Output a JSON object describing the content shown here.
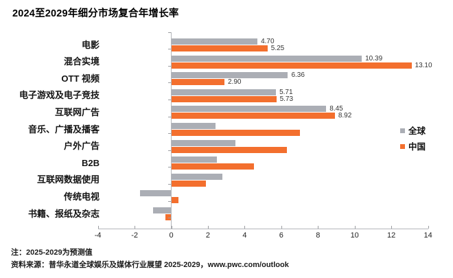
{
  "title": "2024至2029年细分市场复合年增长率",
  "legend": [
    {
      "label": "全球",
      "color": "#abaeb5"
    },
    {
      "label": "中国",
      "color": "#f36f2e"
    }
  ],
  "notes": {
    "line1": "注：2025-2029为预测值",
    "line2": "资料来源：普华永道全球娱乐及媒体行业展望 2025-2029，www.pwc.com/outlook"
  },
  "chart_data": {
    "type": "bar",
    "orientation": "horizontal",
    "title": "2024至2029年细分市场复合年增长率",
    "categories": [
      "电影",
      "混合实境",
      "OTT 视频",
      "电子游戏及电子竞技",
      "互联网广告",
      "音乐、广播及播客",
      "户外广告",
      "B2B",
      "互联网数据使用",
      "传统电视",
      "书籍、报纸及杂志"
    ],
    "series": [
      {
        "name": "全球",
        "color": "#abaeb5",
        "values": [
          4.7,
          10.39,
          6.36,
          5.71,
          8.45,
          2.4,
          3.5,
          2.5,
          2.8,
          -1.7,
          -1.0
        ],
        "labels": [
          "4.70",
          "10.39",
          "6.36",
          "5.71",
          "8.45",
          null,
          null,
          null,
          null,
          null,
          null
        ]
      },
      {
        "name": "中国",
        "color": "#f36f2e",
        "values": [
          5.25,
          13.1,
          2.9,
          5.73,
          8.92,
          7.0,
          6.3,
          4.5,
          1.9,
          0.4,
          -0.3
        ],
        "labels": [
          "5.25",
          "13.10",
          "2.90",
          "5.73",
          "8.92",
          null,
          null,
          null,
          null,
          null,
          null
        ]
      }
    ],
    "xlim": [
      -4,
      14
    ],
    "xticks": [
      -4,
      -2,
      0,
      2,
      4,
      6,
      8,
      10,
      12,
      14
    ],
    "grid": false,
    "legend_position": "right",
    "value_label_note": "labels shown only for first five categories"
  }
}
